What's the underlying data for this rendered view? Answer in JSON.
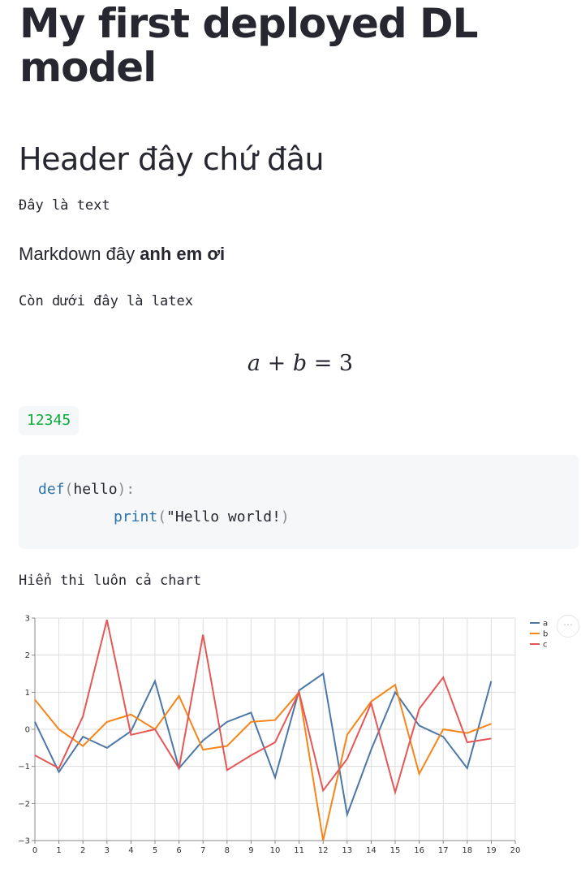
{
  "app": {
    "title": "My first deployed DL model",
    "header": "Header đây chứ đâu",
    "text": "Đây là text",
    "markdown": {
      "plain": "Markdown đây ",
      "bold": "anh em ơi"
    },
    "latex_label": "Còn dưới đây là latex",
    "latex": {
      "a": "a",
      "plus": "+",
      "b": "b",
      "eq": "=",
      "three": "3"
    },
    "number": "12345",
    "code": {
      "line1_kw": "def",
      "line1_open": "(",
      "line1_arg": "hello",
      "line1_close": "):",
      "line2_kw": "print",
      "line2_open": "(",
      "line2_str": "\"Hello world!",
      "line2_close": ")"
    },
    "chart_caption": "Hiển thi luôn cả chart",
    "more_icon": "⋯"
  },
  "colors": {
    "a": "#4c78a8",
    "b": "#f58518",
    "c": "#e45756",
    "number_green": "#09ab3b",
    "keyword_blue": "#2e73a8"
  },
  "chart_data": {
    "type": "line",
    "x": [
      0,
      1,
      2,
      3,
      4,
      5,
      6,
      7,
      8,
      9,
      10,
      11,
      12,
      13,
      14,
      15,
      16,
      17,
      18,
      19
    ],
    "xlim": [
      0,
      20
    ],
    "ylim": [
      -3,
      3
    ],
    "xticks": [
      0,
      1,
      2,
      3,
      4,
      5,
      6,
      7,
      8,
      9,
      10,
      11,
      12,
      13,
      14,
      15,
      16,
      17,
      18,
      19,
      20
    ],
    "yticks": [
      3,
      2,
      1,
      0,
      -1,
      -2,
      -3
    ],
    "grid": true,
    "legend": "top-right",
    "series": [
      {
        "name": "a",
        "values": [
          0.2,
          -1.15,
          -0.2,
          -0.5,
          -0.05,
          1.3,
          -1.05,
          -0.3,
          0.2,
          0.45,
          -1.3,
          1.05,
          1.5,
          -2.3,
          -0.55,
          1.0,
          0.1,
          -0.2,
          -1.05,
          1.3
        ]
      },
      {
        "name": "b",
        "values": [
          0.8,
          0.0,
          -0.45,
          0.2,
          0.4,
          0.0,
          0.9,
          -0.55,
          -0.45,
          0.2,
          0.25,
          1.0,
          -3.0,
          -0.15,
          0.75,
          1.2,
          -1.2,
          0.0,
          -0.1,
          0.15
        ]
      },
      {
        "name": "c",
        "values": [
          -0.7,
          -1.05,
          0.35,
          2.95,
          -0.15,
          0.0,
          -1.05,
          2.55,
          -1.1,
          -0.7,
          -0.35,
          1.0,
          -1.65,
          -0.8,
          0.7,
          -1.7,
          0.55,
          1.4,
          -0.35,
          -0.25
        ]
      }
    ]
  }
}
